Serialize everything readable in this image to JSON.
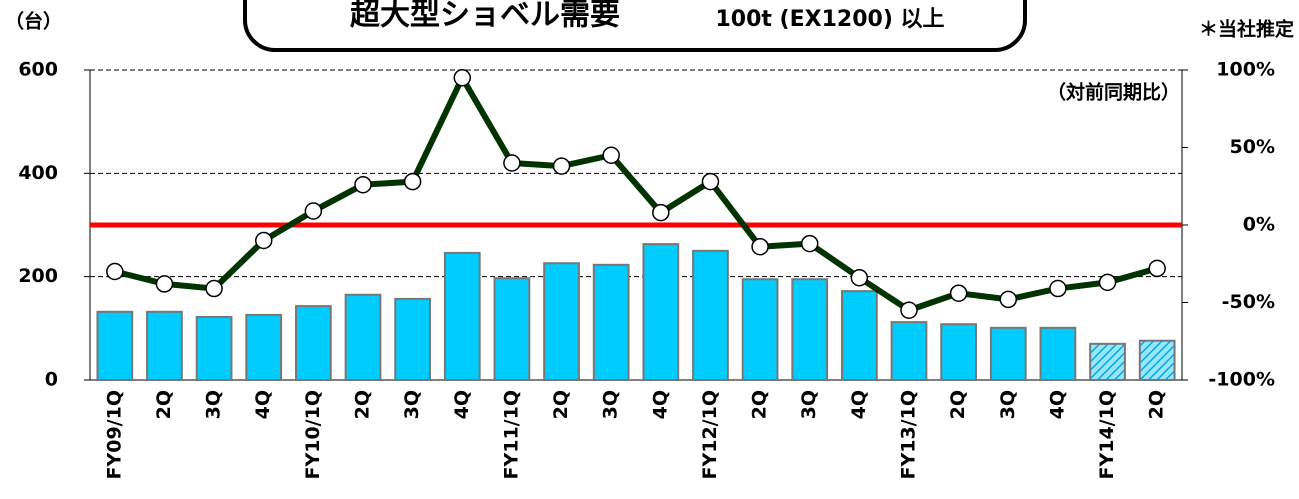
{
  "chart_data": {
    "type": "bar_line",
    "title": "超大型ショベル需要",
    "subtitle": "100t (EX1200) 以上",
    "y_label": "（台）",
    "y2_label": "（対前同期比）",
    "note": "＊当社推定",
    "categories": [
      "FY09/1Q",
      "2Q",
      "3Q",
      "4Q",
      "FY10/1Q",
      "2Q",
      "3Q",
      "4Q",
      "FY11/1Q",
      "2Q",
      "3Q",
      "4Q",
      "FY12/1Q",
      "2Q",
      "3Q",
      "4Q",
      "FY13/1Q",
      "2Q",
      "3Q",
      "4Q",
      "FY14/1Q",
      "2Q"
    ],
    "series": [
      {
        "type": "bar",
        "color": "#00ccff",
        "hatched": [
          20,
          21
        ],
        "values": [
          132,
          132,
          122,
          126,
          143,
          165,
          157,
          246,
          197,
          226,
          223,
          263,
          250,
          195,
          195,
          172,
          112,
          108,
          101,
          101,
          70,
          76
        ]
      },
      {
        "type": "line",
        "axis": "y2",
        "color": "#003300",
        "values": [
          -30,
          -38,
          -41,
          -10,
          9,
          26,
          28,
          95,
          40,
          38,
          45,
          8,
          28,
          -14,
          -12,
          -34,
          -55,
          -44,
          -48,
          -41,
          -37,
          -28
        ]
      }
    ],
    "reference_line": {
      "value": 0,
      "axis": "y2",
      "color": "#ff0000"
    },
    "ylim": [
      0,
      600
    ],
    "yticks": [
      0,
      200,
      400,
      600
    ],
    "y2lim": [
      -100,
      100
    ],
    "y2ticks": [
      {
        "value": -100,
        "label": "-100%"
      },
      {
        "value": -50,
        "label": "-50%"
      },
      {
        "value": 0,
        "label": "0%"
      },
      {
        "value": 50,
        "label": "50%"
      },
      {
        "value": 100,
        "label": "100%"
      }
    ],
    "grid": true
  }
}
